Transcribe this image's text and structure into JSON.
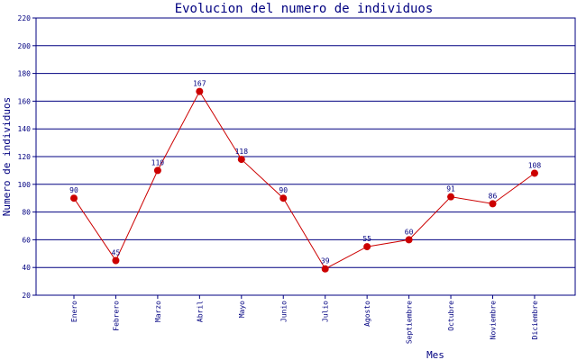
{
  "chart_data": {
    "type": "line",
    "title": "Evolucion del numero de individuos",
    "xlabel": "Mes",
    "ylabel": "Numero de individuos",
    "categories": [
      "Enero",
      "Febrero",
      "Marzo",
      "Abril",
      "Mayo",
      "Junio",
      "Julio",
      "Agosto",
      "Septiembre",
      "Octubre",
      "Noviembre",
      "Diciembre"
    ],
    "series": [
      {
        "values": [
          90,
          45,
          110,
          167,
          118,
          90,
          39,
          55,
          60,
          91,
          86,
          108
        ]
      }
    ],
    "data_labels": [
      "90",
      "45",
      "110",
      "167",
      "118",
      "90",
      "39",
      "55",
      "60",
      "91",
      "86",
      "108"
    ],
    "ylim": [
      20,
      220
    ],
    "yticks": [
      20,
      40,
      60,
      80,
      100,
      120,
      140,
      160,
      180,
      200,
      220
    ],
    "grid": "horizontal",
    "colors": {
      "axis": "#000080",
      "grid": "#000080",
      "line": "#cc0000",
      "marker": "#cc0000",
      "text": "#000080"
    }
  }
}
